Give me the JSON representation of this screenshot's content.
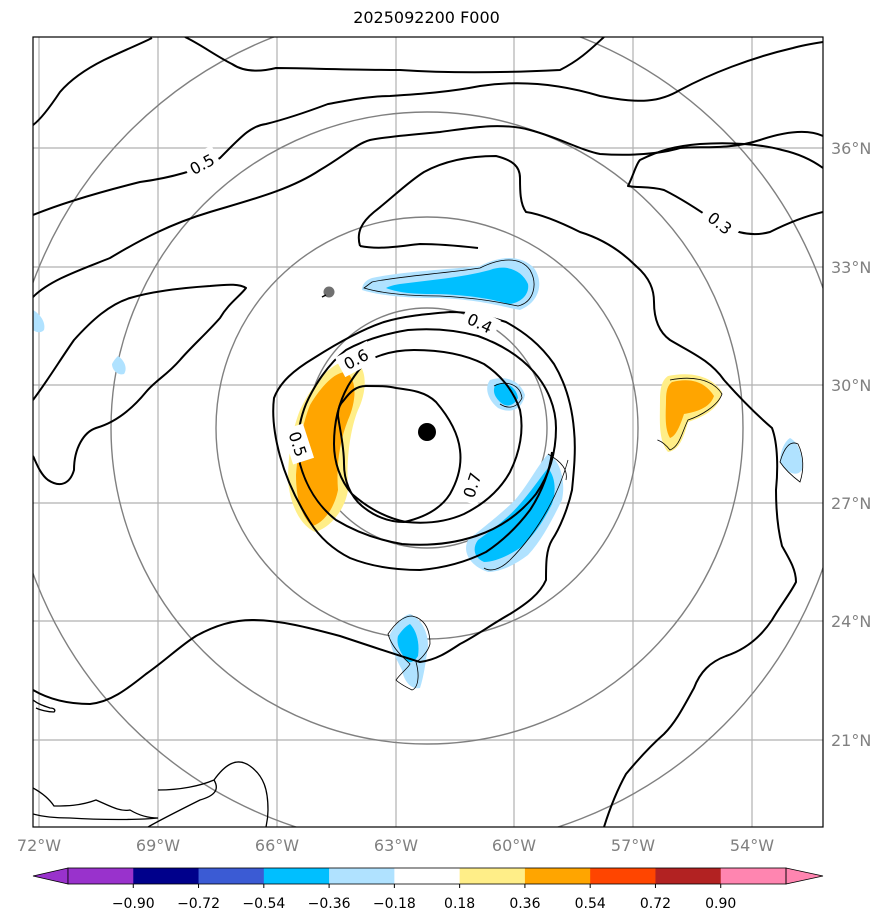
{
  "title": "2025092200 F000",
  "map": {
    "lon_labels": [
      "72°W",
      "69°W",
      "66°W",
      "63°W",
      "60°W",
      "57°W",
      "54°W"
    ],
    "lat_labels": [
      "36°N",
      "33°N",
      "30°N",
      "27°N",
      "24°N",
      "21°N"
    ],
    "contour_labels": [
      "0.5",
      "0.3",
      "0.4",
      "0.6",
      "0.5",
      "0.7"
    ],
    "storm_center": {
      "lon": -62.2,
      "lat": 28.8
    }
  },
  "colorbar": {
    "ticks": [
      "−0.90",
      "−0.72",
      "−0.54",
      "−0.36",
      "−0.18",
      "0.18",
      "0.36",
      "0.54",
      "0.72",
      "0.90"
    ],
    "colors": [
      "#9932cc",
      "#9932cc",
      "#00008b",
      "#3b5bd4",
      "#00bfff",
      "#b0e2ff",
      "#ffffff",
      "#ffee88",
      "#ffa500",
      "#ff4500",
      "#b22222",
      "#ff85b0",
      "#ff85b0"
    ]
  }
}
